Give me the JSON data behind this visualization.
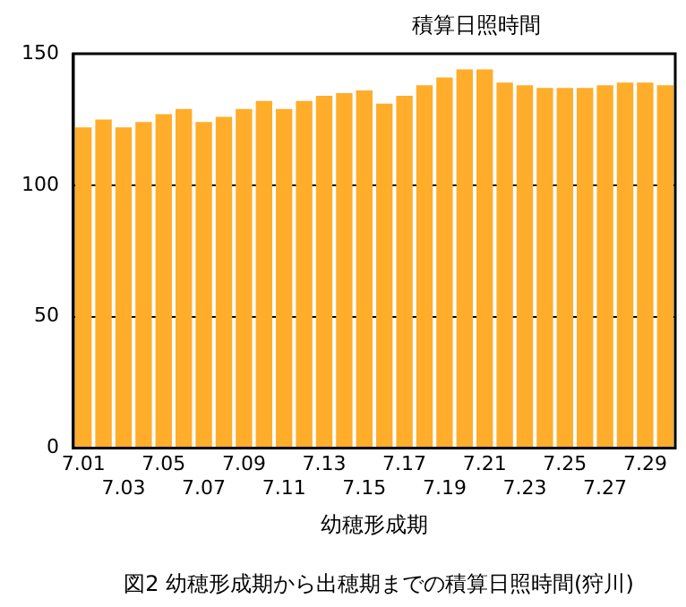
{
  "chart_data": {
    "type": "bar",
    "ylabel": "積算日照時間",
    "xlabel": "幼穂形成期",
    "categories": [
      "7.01",
      null,
      "7.03",
      null,
      "7.05",
      null,
      "7.07",
      null,
      "7.09",
      null,
      "7.11",
      null,
      "7.13",
      null,
      "7.15",
      null,
      "7.17",
      null,
      "7.19",
      null,
      "7.21",
      null,
      "7.23",
      null,
      "7.25",
      null,
      "7.27",
      null,
      "7.29",
      null
    ],
    "values": [
      122,
      125,
      122,
      124,
      127,
      129,
      124,
      126,
      129,
      132,
      129,
      132,
      134,
      135,
      136,
      131,
      134,
      138,
      141,
      144,
      144,
      139,
      138,
      137,
      137,
      137,
      138,
      139,
      139,
      138
    ],
    "color": "#ffad2a",
    "ylim": [
      0,
      150
    ],
    "yticks": [
      0,
      50,
      100,
      150
    ],
    "grid": "y",
    "annotations": [
      "図2  幼穂形成期から出穂期までの積算日照時間(狩川)"
    ]
  }
}
